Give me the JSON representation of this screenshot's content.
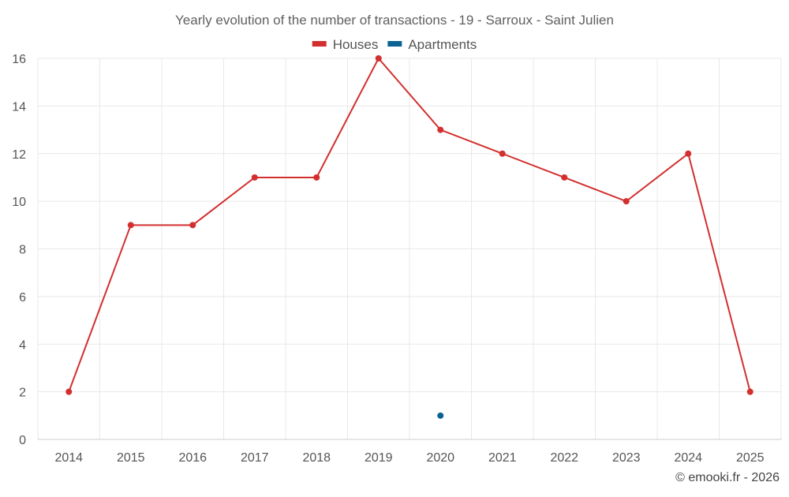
{
  "chart_data": {
    "type": "line",
    "title": "Yearly evolution of the number of transactions - 19 - Sarroux - Saint Julien",
    "xlabel": "",
    "ylabel": "",
    "categories": [
      "2014",
      "2015",
      "2016",
      "2017",
      "2018",
      "2019",
      "2020",
      "2021",
      "2022",
      "2023",
      "2024",
      "2025"
    ],
    "ylim": [
      0,
      16
    ],
    "yticks": [
      0,
      2,
      4,
      6,
      8,
      10,
      12,
      14,
      16
    ],
    "grid": true,
    "legend_position": "top-center",
    "series": [
      {
        "name": "Houses",
        "color": "#d32f2f",
        "values": [
          2,
          9,
          9,
          11,
          11,
          16,
          13,
          12,
          11,
          10,
          12,
          2
        ]
      },
      {
        "name": "Apartments",
        "color": "#0b6394",
        "values": [
          null,
          null,
          null,
          null,
          null,
          null,
          1,
          null,
          null,
          null,
          null,
          null
        ]
      }
    ],
    "credit": "© emooki.fr - 2026"
  }
}
